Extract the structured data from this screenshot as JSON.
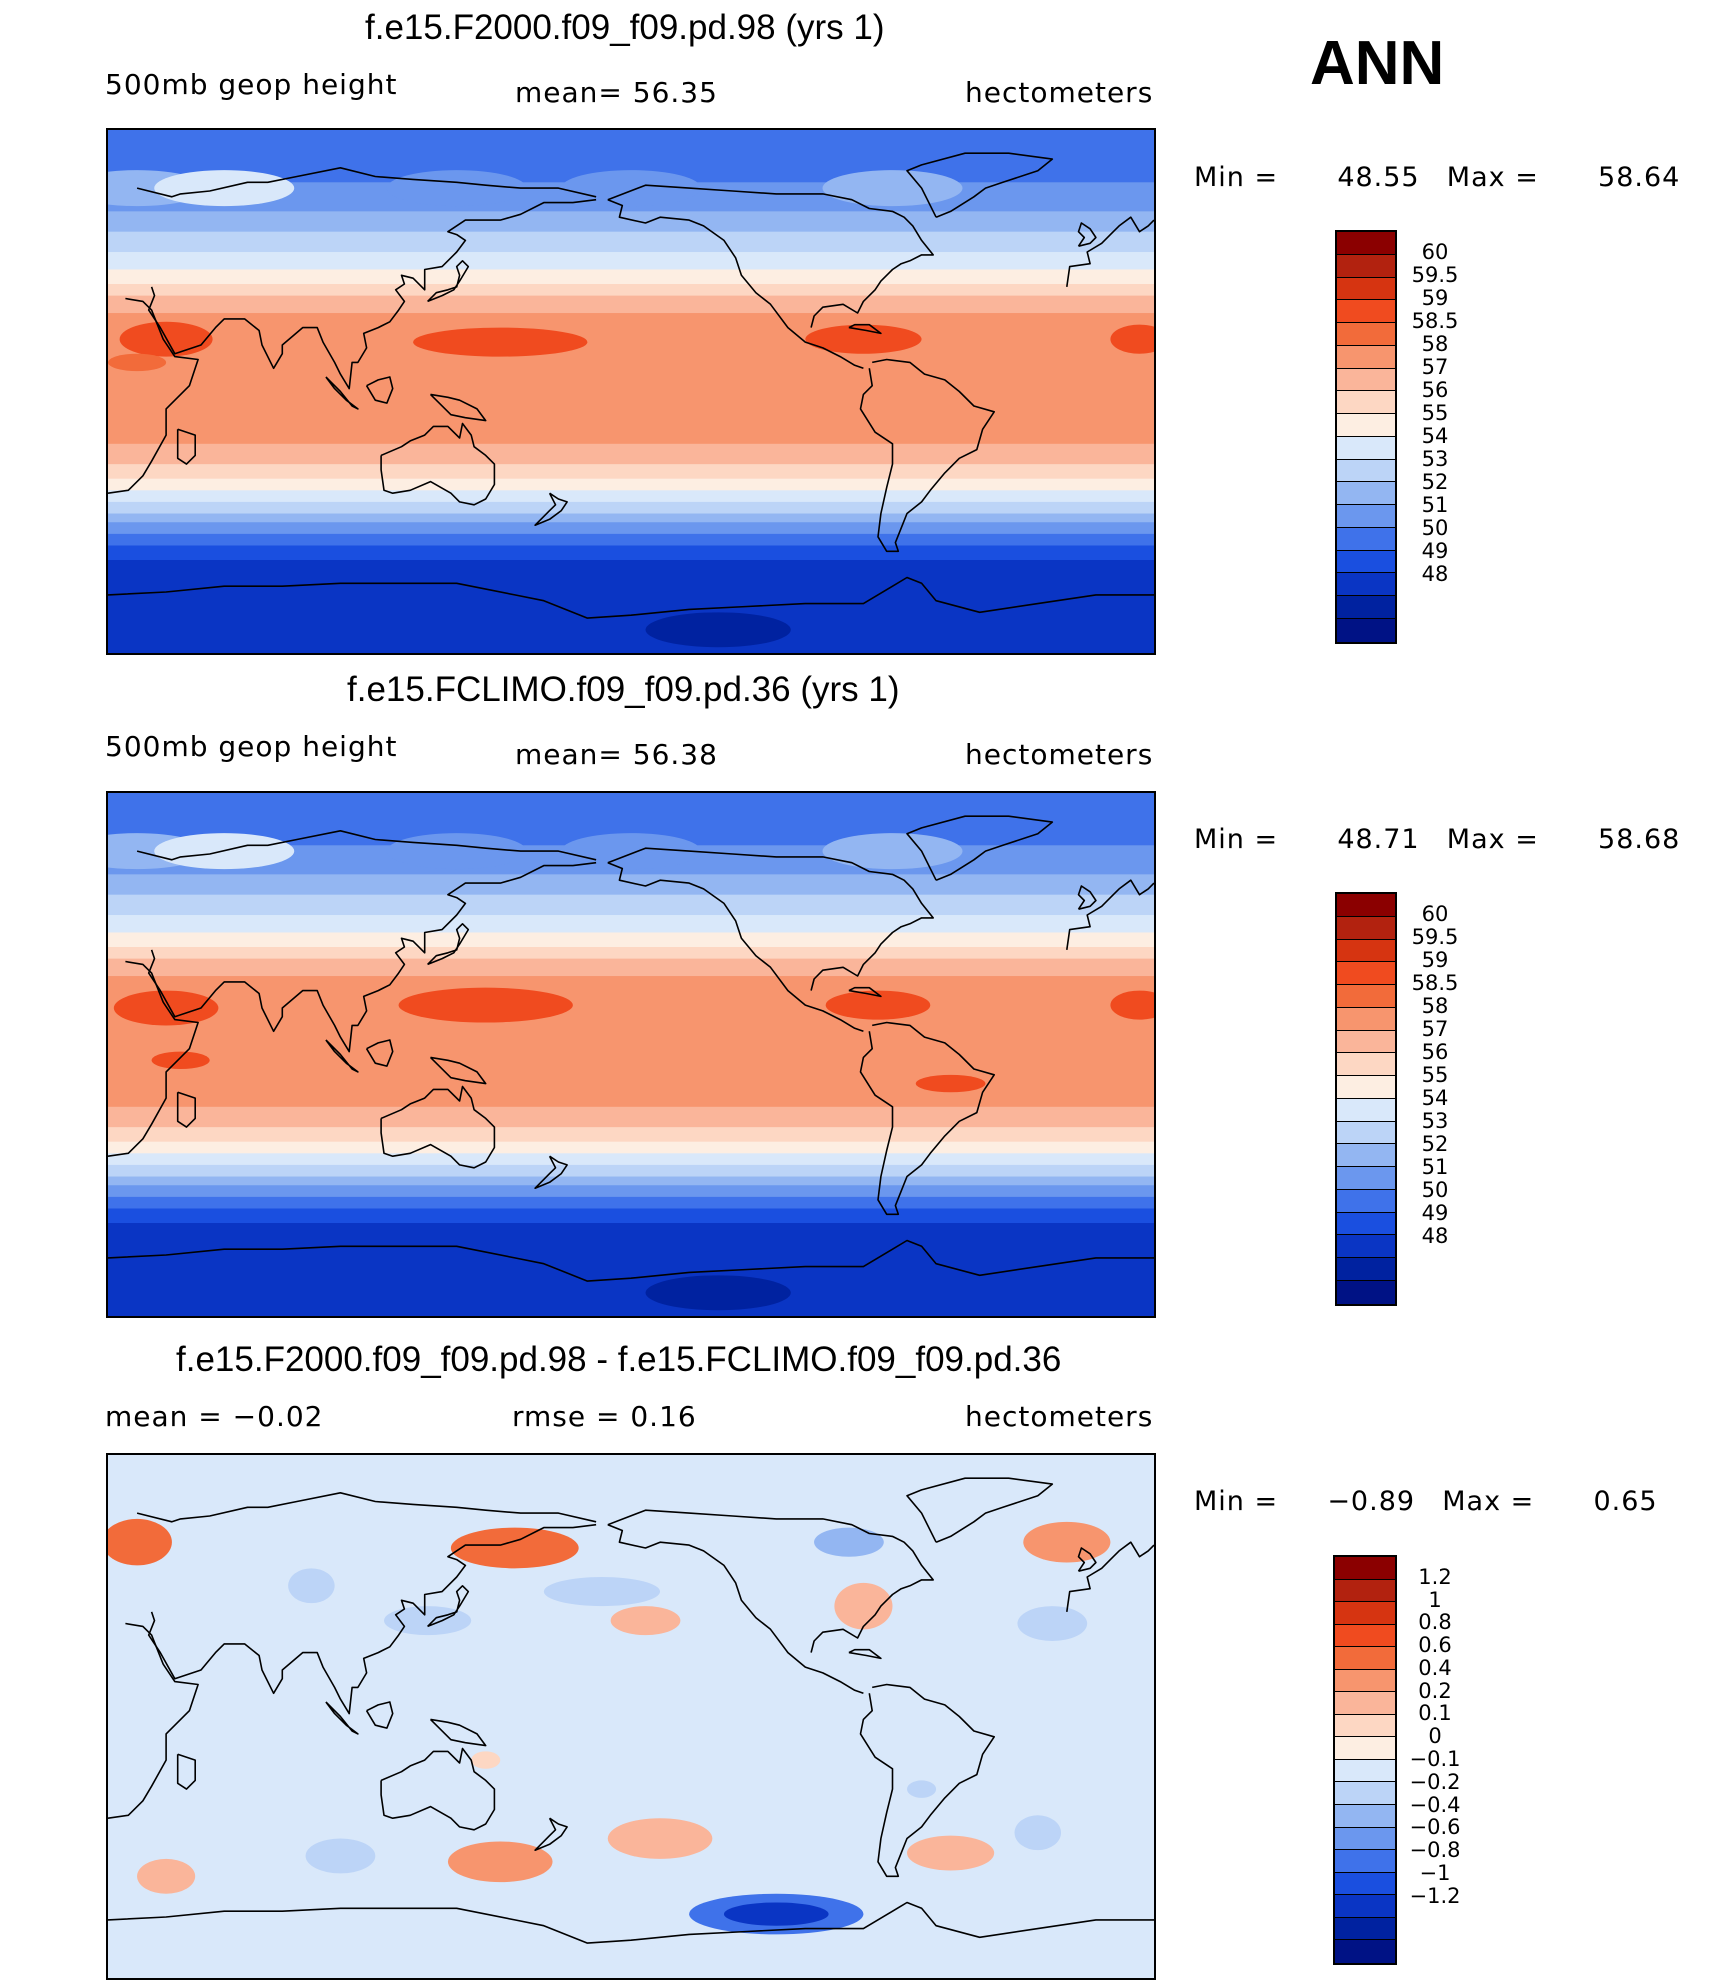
{
  "season": "ANN",
  "panels": [
    {
      "title": "f.e15.F2000.f09_f09.pd.98 (yrs 1)",
      "left_label": "500mb  geop  height",
      "center_label": "mean=   56.35",
      "units": "hectometers",
      "min_label": "Min  =",
      "min_value": "48.55",
      "max_label": "Max  =",
      "max_value": "58.64",
      "field_type": "absolute",
      "colorbar": {
        "labels": [
          "60",
          "59.5",
          "59",
          "58.5",
          "58",
          "57",
          "56",
          "55",
          "54",
          "53",
          "52",
          "51",
          "50",
          "49",
          "48"
        ],
        "colors": [
          "#8b0000",
          "#b2220f",
          "#d63411",
          "#f04b1f",
          "#f26b3a",
          "#f7956e",
          "#fab59a",
          "#fdd7c3",
          "#fdeee2",
          "#d9e8fa",
          "#bcd4f7",
          "#93b6f2",
          "#6b97ee",
          "#3f72ea",
          "#1a4fe0",
          "#0a35c4",
          "#0022a0",
          "#001285"
        ]
      }
    },
    {
      "title": "f.e15.FCLIMO.f09_f09.pd.36 (yrs 1)",
      "left_label": "500mb  geop  height",
      "center_label": "mean=   56.38",
      "units": "hectometers",
      "min_label": "Min  =",
      "min_value": "48.71",
      "max_label": "Max  =",
      "max_value": "58.68",
      "field_type": "absolute",
      "colorbar": {
        "labels": [
          "60",
          "59.5",
          "59",
          "58.5",
          "58",
          "57",
          "56",
          "55",
          "54",
          "53",
          "52",
          "51",
          "50",
          "49",
          "48"
        ],
        "colors": [
          "#8b0000",
          "#b2220f",
          "#d63411",
          "#f04b1f",
          "#f26b3a",
          "#f7956e",
          "#fab59a",
          "#fdd7c3",
          "#fdeee2",
          "#d9e8fa",
          "#bcd4f7",
          "#93b6f2",
          "#6b97ee",
          "#3f72ea",
          "#1a4fe0",
          "#0a35c4",
          "#0022a0",
          "#001285"
        ]
      }
    },
    {
      "title": "f.e15.F2000.f09_f09.pd.98 - f.e15.FCLIMO.f09_f09.pd.36",
      "left_label": "mean  =    −0.02",
      "center_label": "rmse  =     0.16",
      "units": "hectometers",
      "min_label": "Min  =",
      "min_value": "−0.89",
      "max_label": "Max  =",
      "max_value": "0.65",
      "field_type": "difference",
      "colorbar": {
        "labels": [
          "1.2",
          "1",
          "0.8",
          "0.6",
          "0.4",
          "0.2",
          "0.1",
          "0",
          "−0.1",
          "−0.2",
          "−0.4",
          "−0.6",
          "−0.8",
          "−1",
          "−1.2"
        ],
        "colors": [
          "#8b0000",
          "#b2220f",
          "#d63411",
          "#f04b1f",
          "#f26b3a",
          "#f7956e",
          "#fab59a",
          "#fdd7c3",
          "#fdeee2",
          "#d9e8fa",
          "#bcd4f7",
          "#93b6f2",
          "#6b97ee",
          "#3f72ea",
          "#1a4fe0",
          "#0a35c4",
          "#0022a0",
          "#001285"
        ]
      }
    }
  ]
}
